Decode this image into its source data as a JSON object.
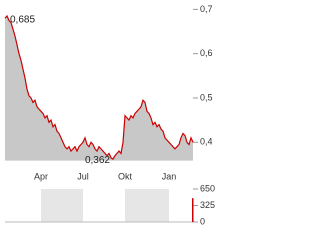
{
  "chart_data": [
    {
      "type": "line",
      "categories": [
        null,
        null,
        null,
        null,
        null,
        null,
        null,
        null,
        null,
        null,
        null,
        null,
        null,
        null,
        null,
        null,
        null,
        null,
        "Apr",
        null,
        null,
        null,
        null,
        null,
        null,
        null,
        null,
        null,
        null,
        null,
        null,
        null,
        null,
        null,
        null,
        null,
        null,
        null,
        null,
        "Jul",
        null,
        null,
        null,
        null,
        null,
        null,
        null,
        null,
        null,
        null,
        null,
        null,
        null,
        null,
        null,
        null,
        null,
        null,
        null,
        null,
        "Okt",
        null,
        null,
        null,
        null,
        null,
        null,
        null,
        null,
        null,
        null,
        null,
        null,
        null,
        null,
        null,
        null,
        null,
        null,
        null,
        null,
        null,
        "Jan",
        null,
        null,
        null,
        null,
        null,
        null,
        null,
        null,
        null,
        null,
        null,
        null
      ],
      "values": [
        0.68,
        0.685,
        0.675,
        0.67,
        0.655,
        0.64,
        0.62,
        0.6,
        0.585,
        0.565,
        0.545,
        0.52,
        0.505,
        0.5,
        0.49,
        0.495,
        0.48,
        0.475,
        0.47,
        0.465,
        0.455,
        0.46,
        0.445,
        0.45,
        0.435,
        0.44,
        0.425,
        0.42,
        0.41,
        0.4,
        0.39,
        0.385,
        0.39,
        0.38,
        0.385,
        0.39,
        0.38,
        0.39,
        0.395,
        0.4,
        0.41,
        0.395,
        0.39,
        0.4,
        0.395,
        0.385,
        0.38,
        0.39,
        0.385,
        0.38,
        0.375,
        0.37,
        0.375,
        0.365,
        0.362,
        0.37,
        0.375,
        0.38,
        0.375,
        0.4,
        0.46,
        0.455,
        0.45,
        0.46,
        0.455,
        0.465,
        0.47,
        0.475,
        0.48,
        0.495,
        0.49,
        0.47,
        0.465,
        0.455,
        0.44,
        0.445,
        0.435,
        0.44,
        0.43,
        0.425,
        0.41,
        0.405,
        0.4,
        0.395,
        0.39,
        0.385,
        0.39,
        0.395,
        0.41,
        0.42,
        0.415,
        0.4,
        0.395,
        0.41,
        0.4
      ],
      "value_labels": [
        null,
        "0,685",
        null,
        null,
        null,
        null,
        null,
        null,
        null,
        null,
        null,
        null,
        null,
        null,
        null,
        null,
        null,
        null,
        null,
        null,
        null,
        null,
        null,
        null,
        null,
        null,
        null,
        null,
        null,
        null,
        null,
        null,
        null,
        null,
        null,
        null,
        null,
        null,
        null,
        null,
        null,
        null,
        null,
        null,
        null,
        null,
        null,
        null,
        null,
        null,
        null,
        null,
        null,
        null,
        "0,362",
        null,
        null,
        null,
        null,
        null,
        null,
        null,
        null,
        null,
        null,
        null,
        null,
        null,
        null,
        null,
        null,
        null,
        null,
        null,
        null,
        null,
        null,
        null,
        null,
        null,
        null,
        null,
        null,
        null,
        null,
        null,
        null,
        null,
        null,
        null,
        null,
        null,
        null,
        null,
        null
      ],
      "color": "#cc0000",
      "fill": "#c8c8c8",
      "ylim": [
        0.36,
        0.711
      ],
      "yticks": [
        {
          "value": 0.4,
          "label": "0,4"
        },
        {
          "value": 0.5,
          "label": "0,5"
        },
        {
          "value": 0.6,
          "label": "0,6"
        },
        {
          "value": 0.7,
          "label": "0,7"
        }
      ]
    },
    {
      "type": "bar",
      "values": [
        0,
        0,
        0,
        0,
        0,
        0,
        0,
        0,
        0,
        0,
        0,
        0,
        0,
        0,
        0,
        0,
        0,
        0,
        0,
        0,
        0,
        0,
        0,
        0,
        0,
        0,
        0,
        0,
        0,
        0,
        0,
        0,
        0,
        0,
        0,
        0,
        0,
        0,
        0,
        0,
        0,
        0,
        0,
        0,
        0,
        0,
        0,
        0,
        0,
        0,
        0,
        0,
        0,
        0,
        0,
        0,
        0,
        0,
        0,
        0,
        0,
        0,
        0,
        0,
        0,
        0,
        0,
        0,
        0,
        0,
        0,
        0,
        0,
        0,
        0,
        0,
        0,
        0,
        0,
        0,
        0,
        0,
        0,
        0,
        0,
        0,
        0,
        0,
        0,
        0,
        0,
        0,
        0,
        0,
        470
      ],
      "color": "#cc0000",
      "ylim": [
        0,
        650
      ],
      "yticks": [
        650,
        325,
        0
      ]
    }
  ]
}
